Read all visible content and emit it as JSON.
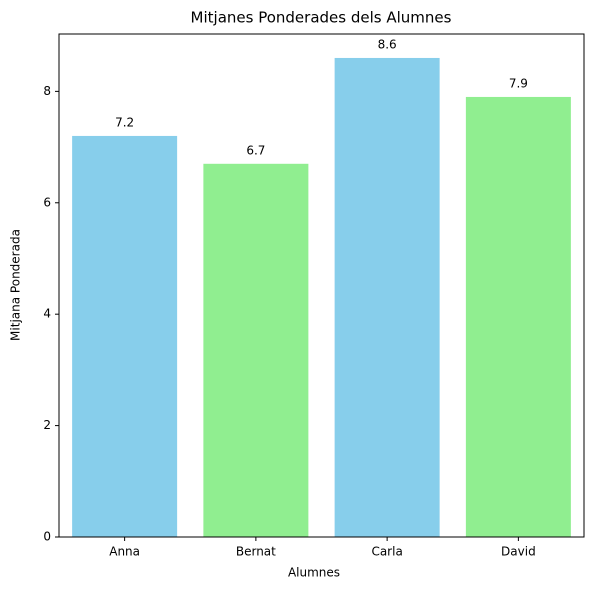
{
  "chart_data": {
    "type": "bar",
    "title": "Mitjanes Ponderades dels Alumnes",
    "x_label": "Alumnes",
    "y_label": "Mitjana Ponderada",
    "categories": [
      "Anna",
      "Bernat",
      "Carla",
      "David"
    ],
    "values": [
      7.2,
      6.7,
      8.6,
      7.9
    ],
    "colors": [
      "#87ceeb",
      "#90ee90",
      "#87ceeb",
      "#90ee90"
    ],
    "ylim": [
      0,
      9.03
    ],
    "yticks": [
      0,
      2,
      4,
      6,
      8
    ],
    "grid": false
  }
}
